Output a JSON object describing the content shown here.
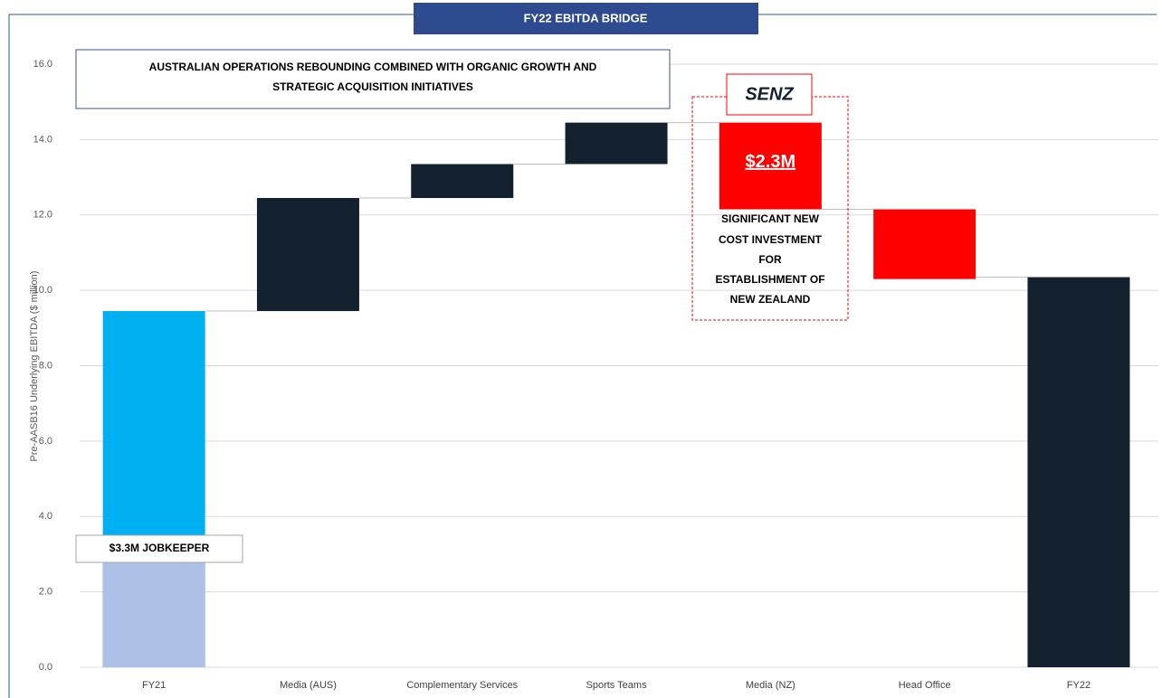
{
  "chart_data": {
    "type": "waterfall",
    "title": "FY22 EBITDA BRIDGE",
    "ylabel": "Pre-AASB16 Underlying EBITDA ($ million)",
    "categories": [
      "FY21",
      "Media (AUS)",
      "Complementary Services",
      "Sports Teams",
      "Media (NZ)",
      "Head Office",
      "FY22"
    ],
    "values": [
      9.45,
      3.0,
      0.9,
      1.1,
      -2.3,
      -1.85,
      10.35
    ],
    "value_labels": [
      null,
      null,
      null,
      null,
      "$2.3M",
      null,
      null
    ],
    "totals": [
      true,
      false,
      false,
      false,
      false,
      false,
      true
    ],
    "colors": [
      "#00b0f0",
      "#13212e",
      "#13212e",
      "#13212e",
      "#ff0000",
      "#ff0000",
      "#13212e"
    ],
    "ylim": [
      0,
      16
    ],
    "yticks": [
      {
        "value": 0,
        "label": "0.0"
      },
      {
        "value": 2,
        "label": "2.0"
      },
      {
        "value": 4,
        "label": "4.0"
      },
      {
        "value": 6,
        "label": "6.0"
      },
      {
        "value": 8,
        "label": "8.0"
      },
      {
        "value": 10,
        "label": "10.0"
      },
      {
        "value": 12,
        "label": "12.0"
      },
      {
        "value": 14,
        "label": "14.0"
      },
      {
        "value": 16,
        "label": "16.0"
      }
    ],
    "grid": true,
    "jobkeeper": {
      "text": "$3.3M JOBKEEPER",
      "value": 3.3,
      "color": "#adc0e6"
    },
    "callout": [
      "AUSTRALIAN OPERATIONS REBOUNDING COMBINED WITH ORGANIC GROWTH AND",
      "STRATEGIC ACQUISITION INITIATIVES"
    ],
    "logo": "SENZ",
    "nz_note": [
      "SIGNIFICANT NEW",
      "COST INVESTMENT",
      "FOR",
      "ESTABLISHMENT OF",
      "NEW ZEALAND"
    ]
  }
}
